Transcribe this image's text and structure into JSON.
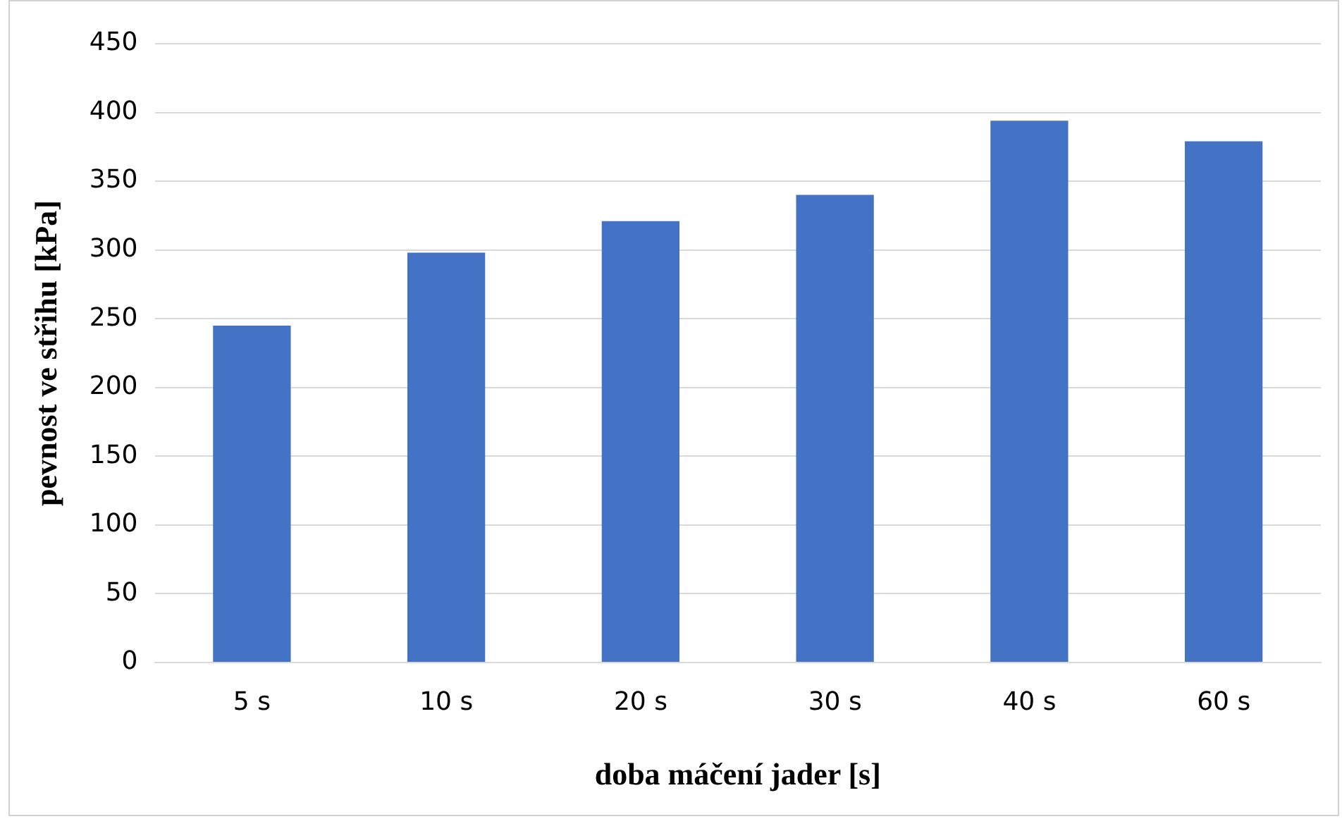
{
  "chart_data": {
    "type": "bar",
    "xlabel": "doba máčení jader [s]",
    "ylabel": "pevnost ve střihu [kPa]",
    "categories": [
      "5 s",
      "10 s",
      "20 s",
      "30 s",
      "40 s",
      "60 s"
    ],
    "values": [
      245,
      298,
      321,
      340,
      394,
      379
    ],
    "color": "#4472c4",
    "ylim": [
      0,
      450
    ],
    "yticks": [
      0,
      50,
      100,
      150,
      200,
      250,
      300,
      350,
      400,
      450
    ],
    "grid": "y",
    "legend": false
  }
}
